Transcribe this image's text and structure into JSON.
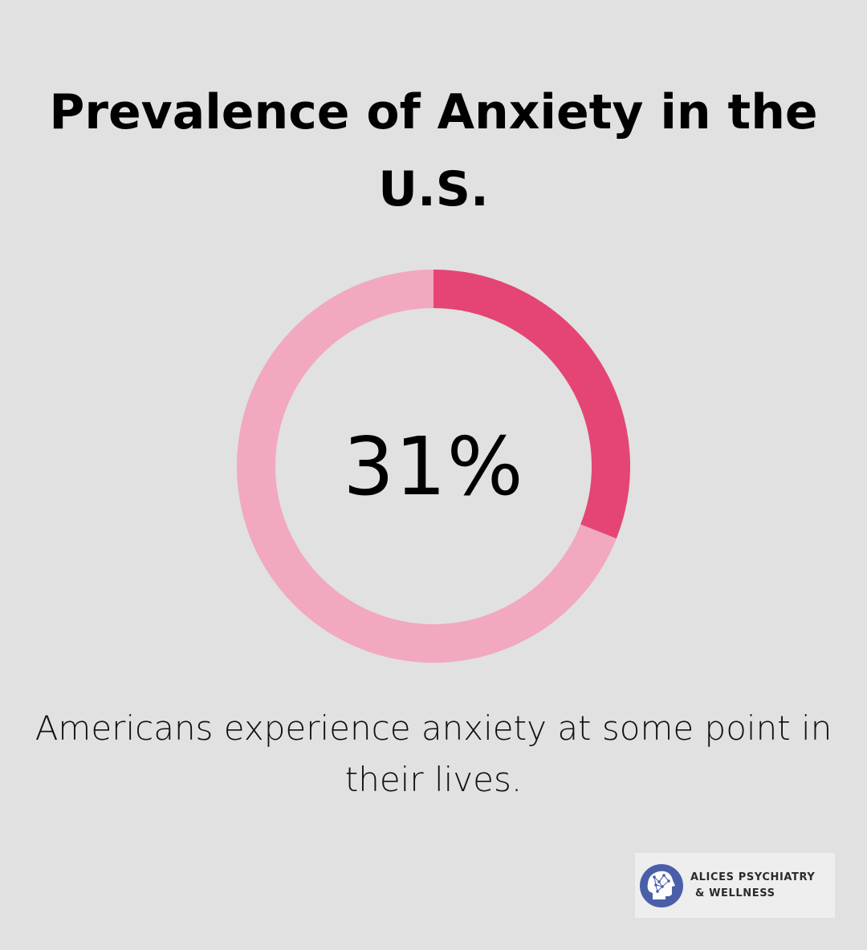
{
  "title": "Prevalence of Anxiety in the U.S.",
  "chart_data": {
    "type": "pie",
    "variant": "donut",
    "value_percent": 31,
    "center_label": "31%",
    "slices": [
      {
        "label": "Americans experience anxiety at some point in their lives",
        "value": 31,
        "color": "#e44575"
      },
      {
        "label": "",
        "value": 69,
        "color": "#f2a8bf"
      }
    ]
  },
  "caption": "Americans experience anxiety at some point in their lives.",
  "logo": {
    "line1": "ALICES PSYCHIATRY",
    "line2": "& WELLNESS",
    "icon": "head-network-icon",
    "color": "#4a5fa8"
  },
  "colors": {
    "background": "#e0e1e0",
    "accent": "#e44575",
    "ring_rest": "#f2a8bf"
  }
}
